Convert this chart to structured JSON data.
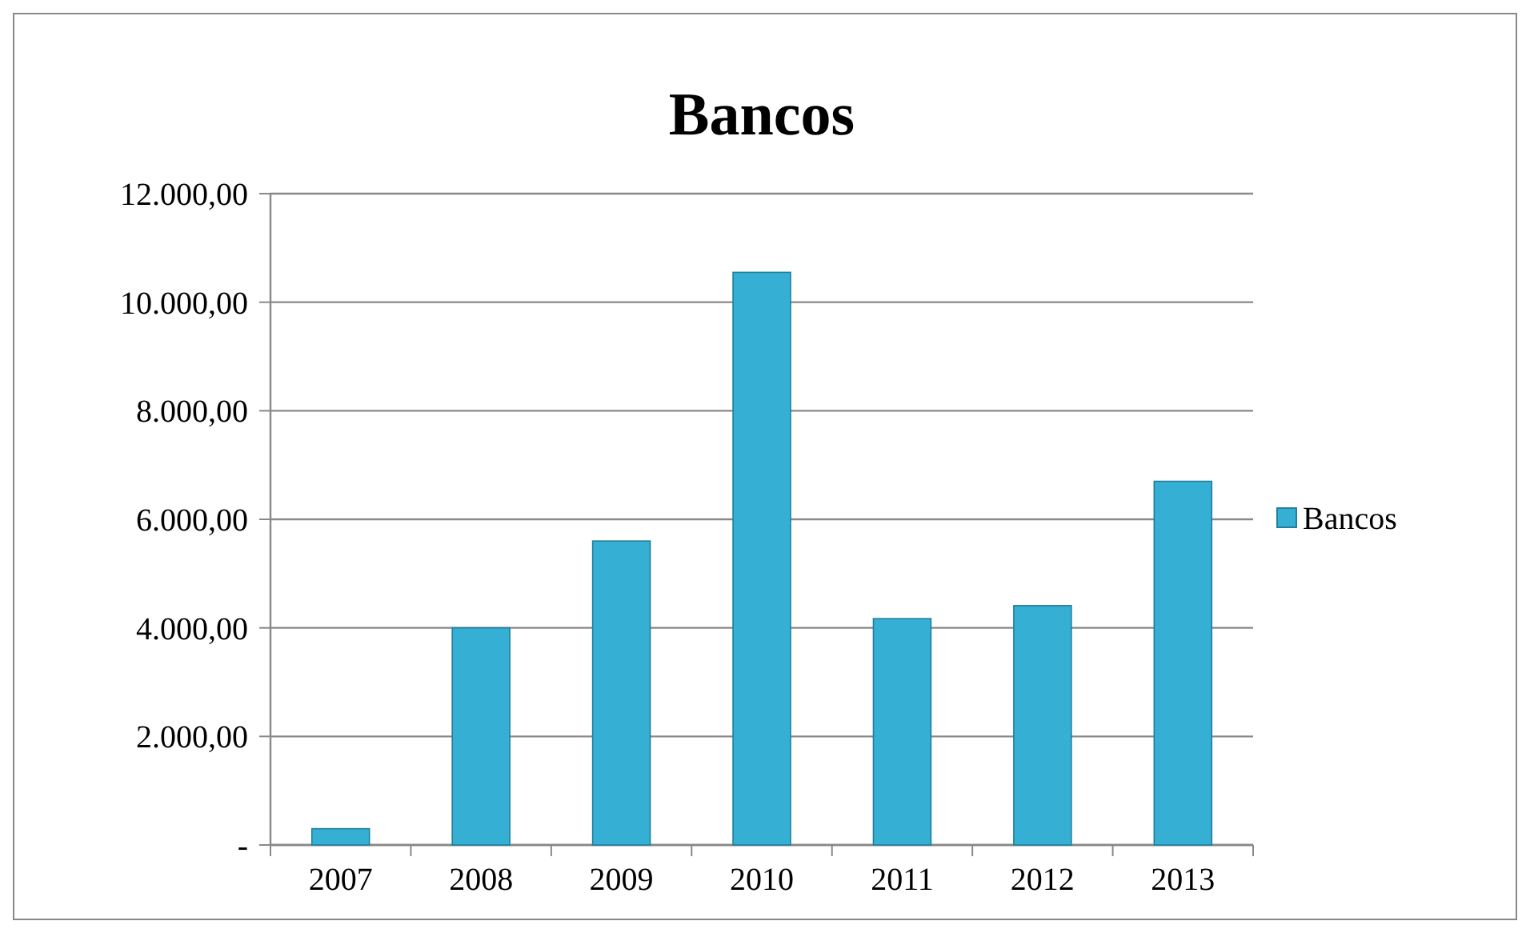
{
  "chart_data": {
    "type": "bar",
    "title": "Bancos",
    "categories": [
      "2007",
      "2008",
      "2009",
      "2010",
      "2011",
      "2012",
      "2013"
    ],
    "series": [
      {
        "name": "Bancos",
        "color": "#35b0d4",
        "values": [
          300,
          4000,
          5600,
          10550,
          4170,
          4410,
          6700
        ]
      }
    ],
    "ylim": [
      0,
      12000
    ],
    "yticks": [
      {
        "value": 0,
        "label": "-"
      },
      {
        "value": 2000,
        "label": "2.000,00"
      },
      {
        "value": 4000,
        "label": "4.000,00"
      },
      {
        "value": 6000,
        "label": "6.000,00"
      },
      {
        "value": 8000,
        "label": "8.000,00"
      },
      {
        "value": 10000,
        "label": "10.000,00"
      },
      {
        "value": 12000,
        "label": "12.000,00"
      }
    ],
    "grid": "y",
    "legend": "right"
  }
}
